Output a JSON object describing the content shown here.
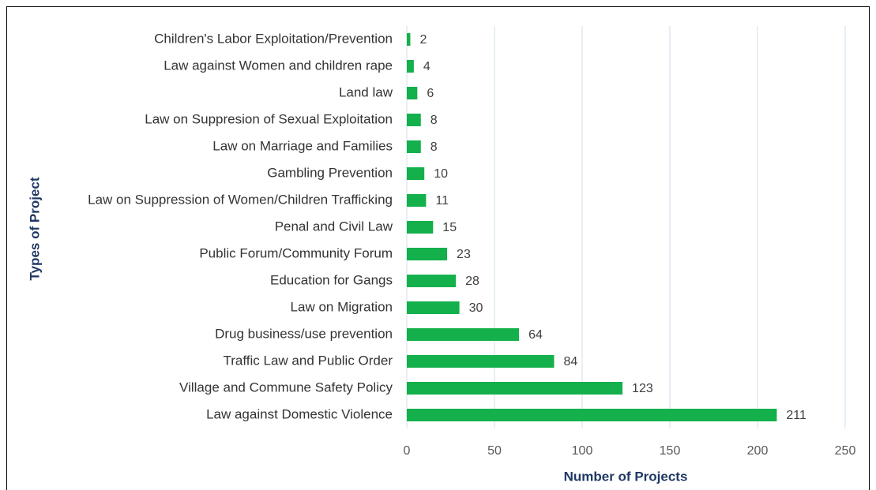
{
  "chart_data": {
    "type": "barh",
    "x_label": "Number of Projects",
    "y_label": "Types of Project",
    "categories": [
      "Children's Labor Exploitation/Prevention",
      "Law against Women and children rape",
      "Land law",
      "Law on Suppresion of Sexual Exploitation",
      "Law on Marriage and Families",
      "Gambling Prevention",
      "Law on Suppression of Women/Children Trafficking",
      "Penal and Civil Law",
      "Public Forum/Community Forum",
      "Education for Gangs",
      "Law on Migration",
      "Drug business/use prevention",
      "Traffic Law and Public Order",
      "Village and Commune Safety Policy",
      "Law against Domestic Violence"
    ],
    "values": [
      2,
      4,
      6,
      8,
      8,
      10,
      11,
      15,
      23,
      28,
      30,
      64,
      84,
      123,
      211
    ],
    "color": "#13b04b",
    "xlim": [
      0,
      250
    ],
    "xticks": [
      0,
      50,
      100,
      150,
      200,
      250
    ],
    "grid": true
  }
}
